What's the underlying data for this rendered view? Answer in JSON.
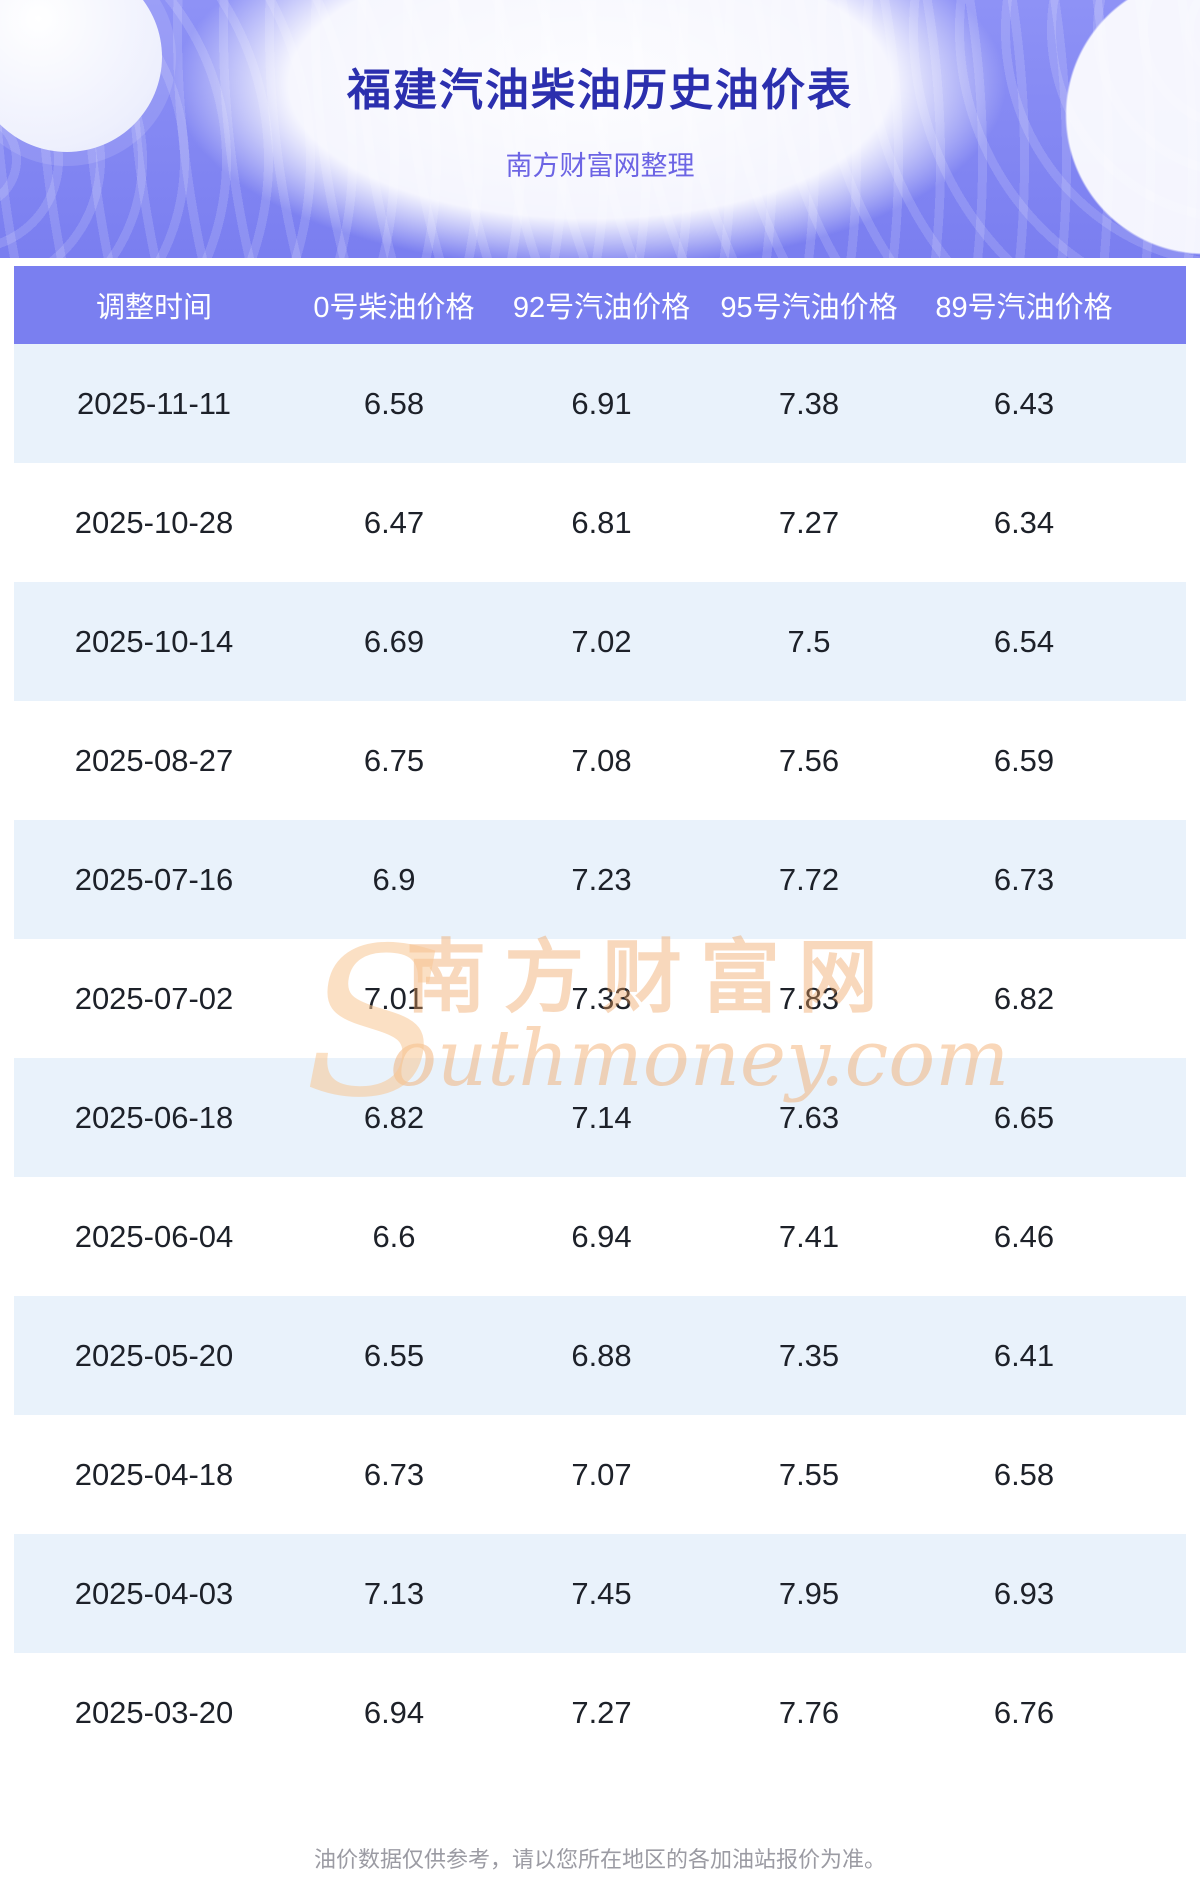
{
  "page": {
    "title": "福建汽油柴油历史油价表",
    "subtitle": "南方财富网整理",
    "footer": "油价数据仅供参考，请以您所在地区的各加油站报价为准。"
  },
  "watermark": {
    "initial": "S",
    "cn": "南方财富网",
    "en": "outhmoney.com"
  },
  "colors": {
    "header_band": "#7a7ff0",
    "row_alt": "#e9f2fb",
    "hero_top": "#8e92f6",
    "hero_bottom": "#7a7ef0",
    "title": "#2b2fae",
    "subtitle": "#6c64e4",
    "watermark": "#f2a663"
  },
  "chart_data": {
    "type": "table",
    "title": "福建汽油柴油历史油价表",
    "subtitle": "南方财富网整理",
    "columns": [
      "调整时间",
      "0号柴油价格",
      "92号汽油价格",
      "95号汽油价格",
      "89号汽油价格"
    ],
    "rows": [
      [
        "2025-11-11",
        "6.58",
        "6.91",
        "7.38",
        "6.43"
      ],
      [
        "2025-10-28",
        "6.47",
        "6.81",
        "7.27",
        "6.34"
      ],
      [
        "2025-10-14",
        "6.69",
        "7.02",
        "7.5",
        "6.54"
      ],
      [
        "2025-08-27",
        "6.75",
        "7.08",
        "7.56",
        "6.59"
      ],
      [
        "2025-07-16",
        "6.9",
        "7.23",
        "7.72",
        "6.73"
      ],
      [
        "2025-07-02",
        "7.01",
        "7.33",
        "7.83",
        "6.82"
      ],
      [
        "2025-06-18",
        "6.82",
        "7.14",
        "7.63",
        "6.65"
      ],
      [
        "2025-06-04",
        "6.6",
        "6.94",
        "7.41",
        "6.46"
      ],
      [
        "2025-05-20",
        "6.55",
        "6.88",
        "7.35",
        "6.41"
      ],
      [
        "2025-04-18",
        "6.73",
        "7.07",
        "7.55",
        "6.58"
      ],
      [
        "2025-04-03",
        "7.13",
        "7.45",
        "7.95",
        "6.93"
      ],
      [
        "2025-03-20",
        "6.94",
        "7.27",
        "7.76",
        "6.76"
      ]
    ],
    "legend_position": "none",
    "grid": false
  }
}
